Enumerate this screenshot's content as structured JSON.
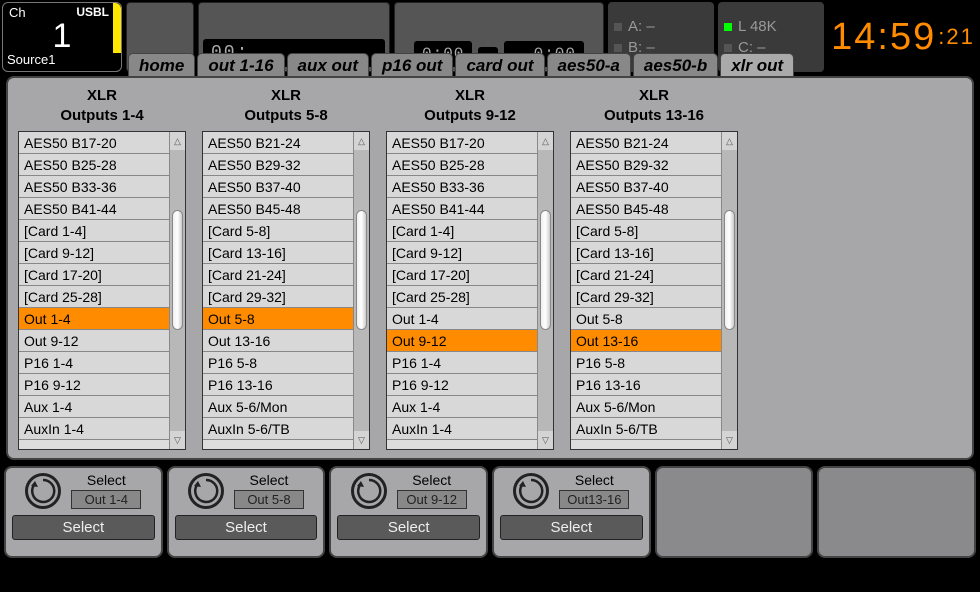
{
  "channel": {
    "ch_label": "Ch",
    "usb_label": "USBL",
    "number": "1",
    "source": "Source1"
  },
  "header": {
    "readout1": "00:",
    "time_a": "0:00",
    "time_b": "- 0:00",
    "slotA": "A:   –",
    "slotB": "B:   –",
    "slotL": "L   48K",
    "slotC": "C:   –"
  },
  "clock": {
    "hhmm": "14:59",
    "ss": ":21"
  },
  "tabs": [
    "home",
    "out 1-16",
    "aux out",
    "p16 out",
    "card out",
    "aes50-a",
    "aes50-b",
    "xlr out"
  ],
  "active_tab": 7,
  "columns": [
    {
      "title1": "XLR",
      "title2": "Outputs 1-4",
      "selected": 8,
      "items": [
        "AES50 B17-20",
        "AES50 B25-28",
        "AES50 B33-36",
        "AES50 B41-44",
        "[Card 1-4]",
        "[Card 9-12]",
        "[Card 17-20]",
        "[Card 25-28]",
        "Out 1-4",
        "Out 9-12",
        "P16 1-4",
        "P16 9-12",
        "Aux 1-4",
        "AuxIn 1-4"
      ]
    },
    {
      "title1": "XLR",
      "title2": "Outputs 5-8",
      "selected": 8,
      "items": [
        "AES50 B21-24",
        "AES50 B29-32",
        "AES50 B37-40",
        "AES50 B45-48",
        "[Card 5-8]",
        "[Card 13-16]",
        "[Card 21-24]",
        "[Card 29-32]",
        "Out 5-8",
        "Out 13-16",
        "P16 5-8",
        "P16 13-16",
        "Aux 5-6/Mon",
        "AuxIn 5-6/TB"
      ]
    },
    {
      "title1": "XLR",
      "title2": "Outputs 9-12",
      "selected": 9,
      "items": [
        "AES50 B17-20",
        "AES50 B25-28",
        "AES50 B33-36",
        "AES50 B41-44",
        "[Card 1-4]",
        "[Card 9-12]",
        "[Card 17-20]",
        "[Card 25-28]",
        "Out 1-4",
        "Out 9-12",
        "P16 1-4",
        "P16 9-12",
        "Aux 1-4",
        "AuxIn 1-4"
      ]
    },
    {
      "title1": "XLR",
      "title2": "Outputs 13-16",
      "selected": 9,
      "items": [
        "AES50 B21-24",
        "AES50 B29-32",
        "AES50 B37-40",
        "AES50 B45-48",
        "[Card 5-8]",
        "[Card 13-16]",
        "[Card 21-24]",
        "[Card 29-32]",
        "Out 5-8",
        "Out 13-16",
        "P16 5-8",
        "P16 13-16",
        "Aux 5-6/Mon",
        "AuxIn 5-6/TB"
      ]
    }
  ],
  "bottom": [
    {
      "label": "Select",
      "value": "Out 1-4",
      "button": "Select"
    },
    {
      "label": "Select",
      "value": "Out 5-8",
      "button": "Select"
    },
    {
      "label": "Select",
      "value": "Out 9-12",
      "button": "Select"
    },
    {
      "label": "Select",
      "value": "Out13-16",
      "button": "Select"
    }
  ],
  "colors": {
    "highlight": "#ff8c00",
    "panel_bg": "#a7a7a9",
    "header_bg": "#555",
    "clock": "#ff8c00"
  }
}
